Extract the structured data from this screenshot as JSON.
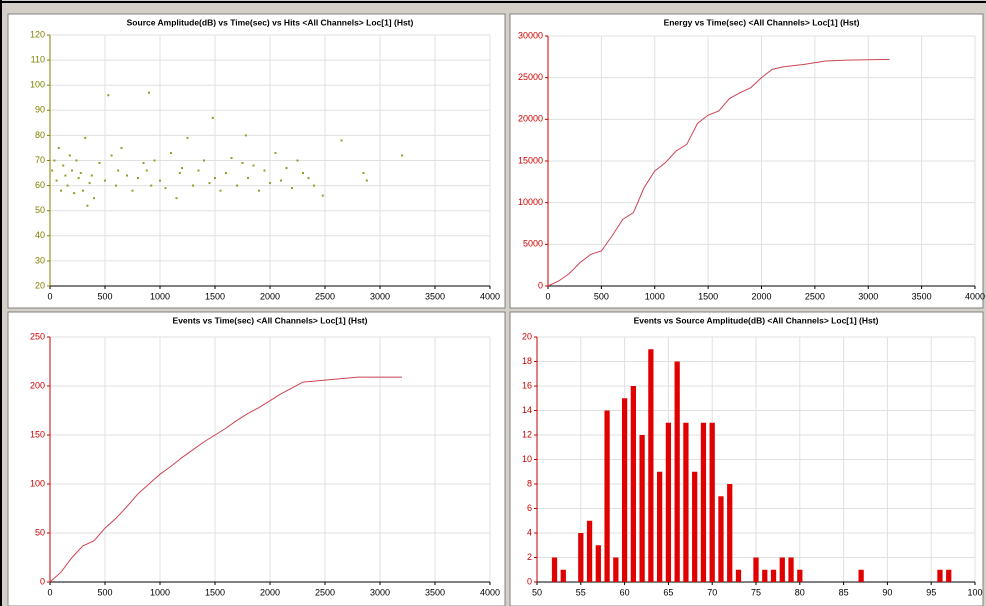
{
  "chart_data": [
    {
      "type": "scatter",
      "title": "Source Amplitude(dB) vs Time(sec) vs Hits <All Channels> Loc[1] (Hst)",
      "x": [
        20,
        40,
        60,
        80,
        100,
        120,
        140,
        160,
        180,
        200,
        220,
        240,
        260,
        280,
        300,
        320,
        340,
        360,
        380,
        400,
        450,
        500,
        530,
        560,
        600,
        620,
        650,
        700,
        750,
        800,
        850,
        880,
        900,
        920,
        950,
        1000,
        1050,
        1100,
        1150,
        1180,
        1200,
        1250,
        1300,
        1350,
        1400,
        1450,
        1480,
        1500,
        1550,
        1600,
        1650,
        1700,
        1750,
        1780,
        1800,
        1850,
        1900,
        1950,
        2000,
        2050,
        2100,
        2150,
        2200,
        2250,
        2300,
        2350,
        2400,
        2480,
        2650,
        2850,
        2880,
        3200
      ],
      "values": [
        66,
        70,
        62,
        75,
        58,
        68,
        64,
        60,
        72,
        66,
        57,
        70,
        63,
        65,
        58,
        79,
        52,
        61,
        64,
        55,
        69,
        62,
        96,
        72,
        60,
        66,
        75,
        64,
        58,
        63,
        69,
        66,
        97,
        60,
        70,
        62,
        59,
        73,
        55,
        65,
        67,
        79,
        60,
        66,
        70,
        61,
        87,
        63,
        58,
        65,
        71,
        60,
        69,
        80,
        63,
        68,
        58,
        66,
        61,
        73,
        62,
        67,
        59,
        70,
        65,
        63,
        60,
        56,
        78,
        65,
        62,
        72
      ],
      "color": "#9a9a2a",
      "axis_color": "#808000",
      "xlim": [
        0,
        4000
      ],
      "xticks": [
        0,
        500,
        1000,
        1500,
        2000,
        2500,
        3000,
        3500,
        4000
      ],
      "ylim": [
        20,
        120
      ],
      "yticks": [
        20,
        30,
        40,
        50,
        60,
        70,
        80,
        90,
        100,
        110,
        120
      ],
      "grid": true
    },
    {
      "type": "line",
      "title": "Energy vs Time(sec) <All Channels> Loc[1] (Hst)",
      "x": [
        0,
        100,
        200,
        300,
        400,
        500,
        600,
        700,
        800,
        900,
        1000,
        1100,
        1200,
        1300,
        1400,
        1500,
        1600,
        1700,
        1800,
        1900,
        2000,
        2100,
        2200,
        2400,
        2600,
        2800,
        3200
      ],
      "values": [
        0,
        600,
        1500,
        2800,
        3800,
        4200,
        6000,
        8000,
        8800,
        11800,
        13800,
        14800,
        16200,
        17000,
        19500,
        20500,
        21000,
        22500,
        23200,
        23800,
        25000,
        26000,
        26300,
        26600,
        27000,
        27100,
        27200
      ],
      "color": "#cc4455",
      "axis_color": "#cc0000",
      "xlim": [
        0,
        4000
      ],
      "xticks": [
        0,
        500,
        1000,
        1500,
        2000,
        2500,
        3000,
        3500,
        4000
      ],
      "ylim": [
        0,
        30000
      ],
      "yticks": [
        0,
        5000,
        10000,
        15000,
        20000,
        25000,
        30000
      ],
      "grid": true
    },
    {
      "type": "line",
      "title": "Events vs Time(sec) <All Channels> Loc[1] (Hst)",
      "x": [
        0,
        100,
        200,
        300,
        400,
        500,
        600,
        700,
        800,
        900,
        1000,
        1100,
        1200,
        1300,
        1400,
        1500,
        1600,
        1700,
        1800,
        1900,
        2000,
        2100,
        2200,
        2300,
        2400,
        2600,
        2800,
        3200
      ],
      "values": [
        0,
        10,
        25,
        37,
        42,
        55,
        65,
        77,
        90,
        100,
        110,
        118,
        127,
        135,
        143,
        150,
        157,
        165,
        172,
        178,
        185,
        192,
        198,
        204,
        205,
        207,
        209,
        209
      ],
      "color": "#cc4455",
      "axis_color": "#cc0000",
      "xlim": [
        0,
        4000
      ],
      "xticks": [
        0,
        500,
        1000,
        1500,
        2000,
        2500,
        3000,
        3500,
        4000
      ],
      "ylim": [
        0,
        250
      ],
      "yticks": [
        0,
        50,
        100,
        150,
        200,
        250
      ],
      "grid": true
    },
    {
      "type": "bar",
      "title": "Events vs Source Amplitude(dB) <All Channels> Loc[1] (Hst)",
      "x": [
        52,
        53,
        55,
        56,
        57,
        58,
        59,
        60,
        61,
        62,
        63,
        64,
        65,
        66,
        67,
        68,
        69,
        70,
        71,
        72,
        73,
        75,
        76,
        77,
        78,
        79,
        80,
        87,
        96,
        97
      ],
      "values": [
        2,
        1,
        4,
        5,
        3,
        14,
        2,
        15,
        16,
        12,
        19,
        9,
        13,
        18,
        13,
        9,
        13,
        13,
        7,
        8,
        1,
        2,
        1,
        1,
        2,
        2,
        1,
        1,
        1,
        1
      ],
      "color": "#e00000",
      "axis_color": "#cc0000",
      "xlim": [
        50,
        100
      ],
      "xticks": [
        50,
        55,
        60,
        65,
        70,
        75,
        80,
        85,
        90,
        95,
        100
      ],
      "ylim": [
        0,
        20
      ],
      "yticks": [
        0,
        2,
        4,
        6,
        8,
        10,
        12,
        14,
        16,
        18,
        20
      ],
      "grid": true
    }
  ]
}
